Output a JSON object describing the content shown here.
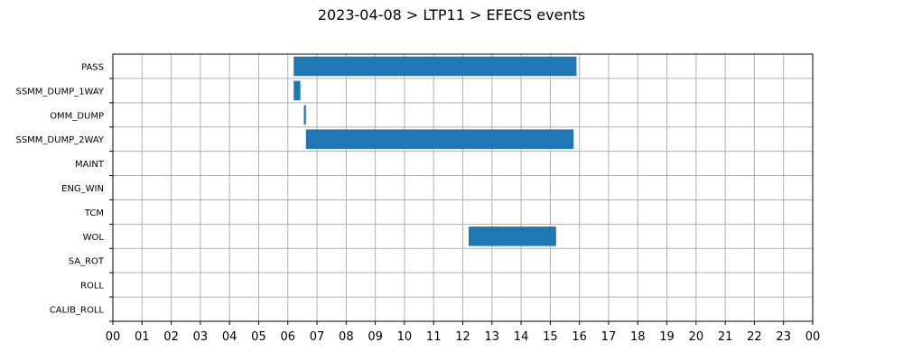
{
  "chart_data": {
    "type": "bar",
    "orientation": "horizontal-gantt",
    "title": "2023-04-08 > LTP11 > EFECS events",
    "xlabel": "",
    "ylabel": "",
    "grid": true,
    "bar_color": "#1f77b4",
    "grid_color": "#b0b0b0",
    "x_range_hours": [
      0,
      24
    ],
    "x_tick_labels": [
      "00",
      "01",
      "02",
      "03",
      "04",
      "05",
      "06",
      "07",
      "08",
      "09",
      "10",
      "11",
      "12",
      "13",
      "14",
      "15",
      "16",
      "17",
      "18",
      "19",
      "20",
      "21",
      "22",
      "23",
      "00"
    ],
    "categories": [
      "PASS",
      "SSMM_DUMP_1WAY",
      "OMM_DUMP",
      "SSMM_DUMP_2WAY",
      "MAINT",
      "ENG_WIN",
      "TCM",
      "WOL",
      "SA_ROT",
      "ROLL",
      "CALIB_ROLL"
    ],
    "events": [
      {
        "category": "PASS",
        "start": 6.2,
        "end": 15.9
      },
      {
        "category": "SSMM_DUMP_1WAY",
        "start": 6.2,
        "end": 6.43
      },
      {
        "category": "OMM_DUMP",
        "start": 6.55,
        "end": 6.62
      },
      {
        "category": "SSMM_DUMP_2WAY",
        "start": 6.62,
        "end": 15.8
      },
      {
        "category": "WOL",
        "start": 12.2,
        "end": 15.2
      }
    ]
  }
}
